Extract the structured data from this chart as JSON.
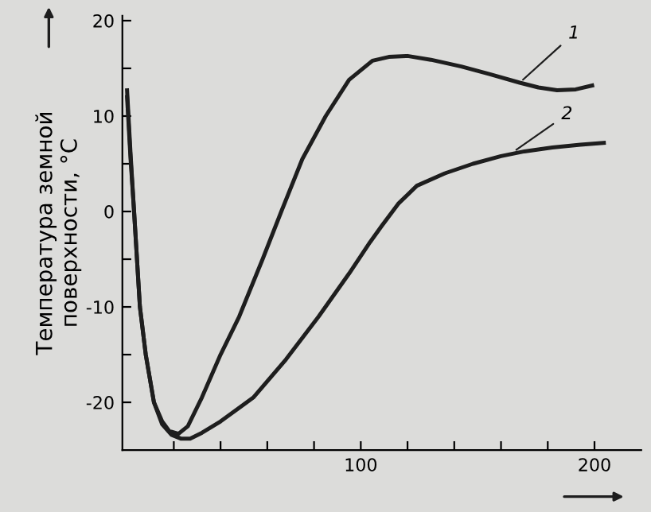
{
  "chart_data": {
    "type": "line",
    "ylabel": "Температура земной\nповерхности, °C",
    "xlim": [
      -2,
      220
    ],
    "ylim": [
      -25,
      20.5
    ],
    "xticks": [
      {
        "value": 20,
        "label": null
      },
      {
        "value": 40,
        "label": null
      },
      {
        "value": 60,
        "label": null
      },
      {
        "value": 80,
        "label": null
      },
      100,
      {
        "value": 120,
        "label": null
      },
      {
        "value": 140,
        "label": null
      },
      {
        "value": 160,
        "label": null
      },
      {
        "value": 180,
        "label": null
      },
      200
    ],
    "yticks": [
      -20,
      {
        "value": -15,
        "label": null
      },
      -10,
      {
        "value": -5,
        "label": null
      },
      0,
      {
        "value": 5,
        "label": null
      },
      10,
      {
        "value": 15,
        "label": null
      },
      20
    ],
    "grid": false,
    "legend": false,
    "marker": "none",
    "line_style": "solid",
    "series": [
      {
        "color": "#1e1e1e",
        "x": [
          0,
          1.5,
          3,
          5.5,
          8,
          11.5,
          15,
          18,
          22,
          26,
          32,
          40,
          48,
          58,
          66,
          75,
          85,
          95,
          105,
          112,
          120,
          130,
          143,
          155,
          168,
          176,
          184,
          192,
          199
        ],
        "values": [
          12.7,
          6,
          0,
          -10,
          -15,
          -20,
          -22,
          -23,
          -23.3,
          -22.5,
          -19.5,
          -15,
          -11,
          -5,
          0,
          5.5,
          10,
          13.8,
          15.8,
          16.2,
          16.3,
          15.9,
          15.2,
          14.4,
          13.5,
          13,
          12.7,
          12.8,
          13.2
        ]
      },
      {
        "color": "#1e1e1e",
        "x": [
          0,
          1.5,
          3,
          5.5,
          8,
          11.5,
          15,
          19,
          23,
          27,
          32,
          40,
          54,
          68,
          82,
          95,
          104,
          109,
          116,
          124,
          136,
          148,
          160,
          170,
          182,
          194,
          204
        ],
        "values": [
          12,
          5.5,
          0,
          -10,
          -15,
          -20,
          -22.3,
          -23.4,
          -23.8,
          -23.8,
          -23.2,
          -22,
          -19.5,
          -15.5,
          -11,
          -6.5,
          -3.2,
          -1.5,
          0.8,
          2.7,
          4,
          5,
          5.8,
          6.3,
          6.7,
          7,
          7.2
        ]
      }
    ],
    "annotations": [
      {
        "text": "1",
        "x": 168,
        "y": 13.5
      },
      {
        "text": "2",
        "x": 165,
        "y": 6.2
      }
    ]
  }
}
